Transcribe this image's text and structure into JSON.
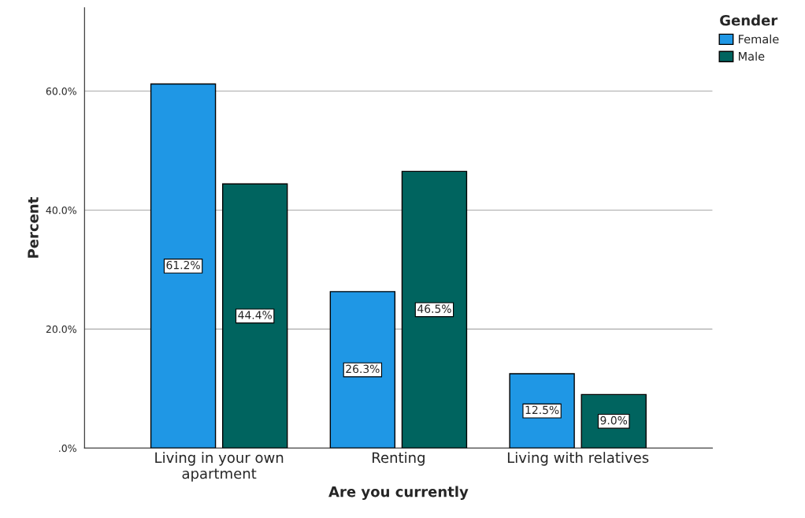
{
  "chart_data": {
    "type": "bar",
    "categories": [
      "Living in your own\napartment",
      "Renting",
      "Living with relatives"
    ],
    "xlabel": "Are you currently",
    "ylabel": "Percent",
    "legend_title": "Gender",
    "series": [
      {
        "name": "Female",
        "color": "#1f97e5",
        "values": [
          61.2,
          26.3,
          12.5
        ],
        "value_labels": [
          "61.2%",
          "26.3%",
          "12.5%"
        ]
      },
      {
        "name": "Male",
        "color": "#00645f",
        "values": [
          44.4,
          46.5,
          9.0
        ],
        "value_labels": [
          "44.4%",
          "46.5%",
          "9.0%"
        ]
      }
    ],
    "ylim": [
      0,
      74
    ],
    "yticks": [
      {
        "value": 0,
        "label": ".0%"
      },
      {
        "value": 20,
        "label": "20.0%"
      },
      {
        "value": 40,
        "label": "40.0%"
      },
      {
        "value": 60,
        "label": "60.0%"
      }
    ],
    "grid": "y",
    "legend": "top right"
  }
}
